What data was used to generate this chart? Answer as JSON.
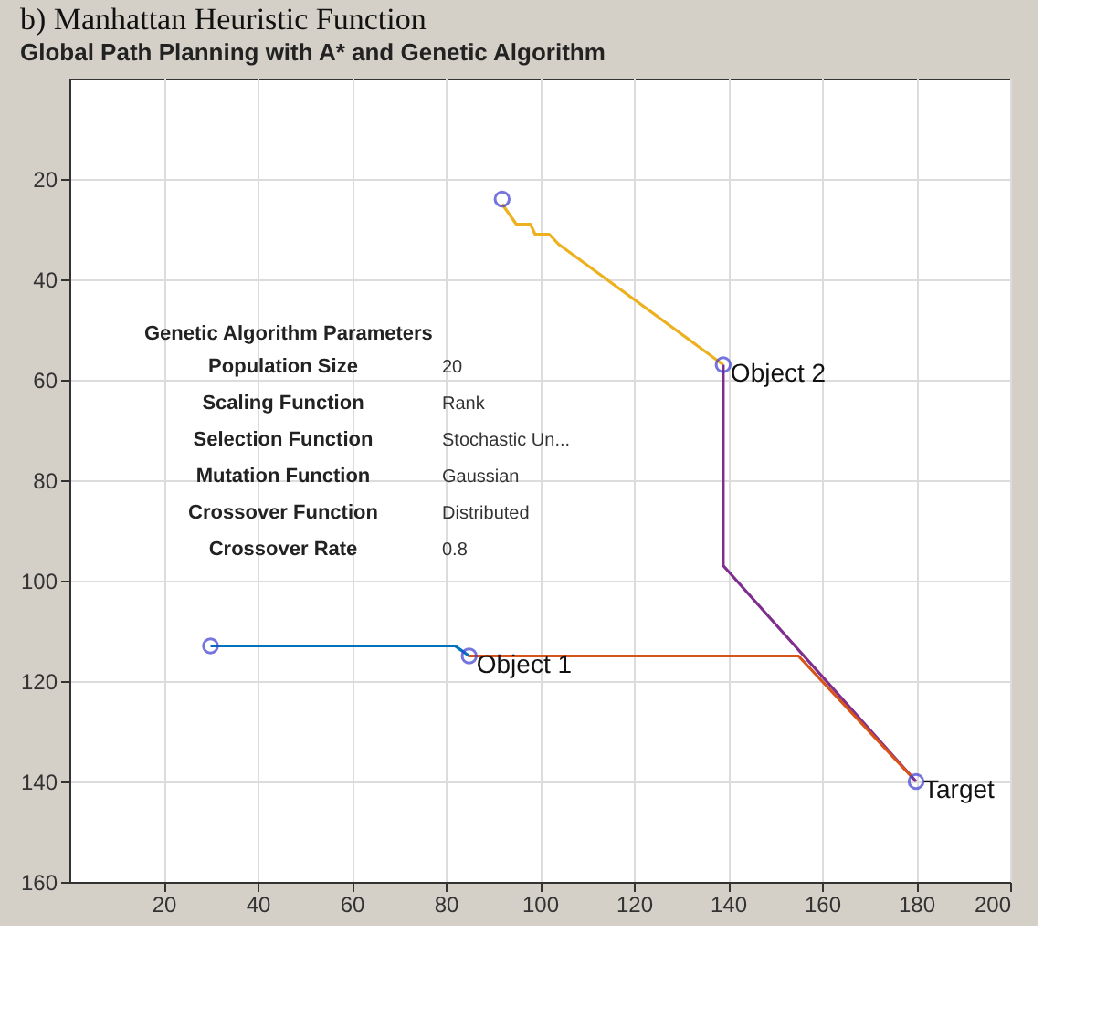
{
  "chart_data": {
    "type": "line",
    "title": "b) Manhattan Heuristic Function",
    "subtitle": "Global Path Planning with A* and Genetic Algorithm",
    "xlim": [
      0,
      200
    ],
    "xticks": [
      20,
      40,
      60,
      80,
      100,
      120,
      140,
      160,
      180,
      200
    ],
    "ylim": [
      160,
      0
    ],
    "yticks": [
      20,
      40,
      60,
      80,
      100,
      120,
      140,
      160
    ],
    "grid": true,
    "series": [
      {
        "color": "#edb120",
        "x": [
          92,
          95,
          98,
          99,
          102,
          104,
          139
        ],
        "values": [
          25,
          29,
          29,
          31,
          31,
          33,
          57
        ]
      },
      {
        "color": "#7e2f8e",
        "x": [
          139,
          139,
          180
        ],
        "values": [
          57,
          97,
          140
        ]
      },
      {
        "color": "#0072bd",
        "x": [
          30,
          82,
          85
        ],
        "values": [
          113,
          113,
          115
        ]
      },
      {
        "color": "#d95319",
        "x": [
          85,
          155,
          179
        ],
        "values": [
          115,
          115,
          139
        ]
      },
      {
        "type": "scatter",
        "marker": "circle",
        "color": "#3c3cd0",
        "x": [
          30,
          92,
          85,
          139,
          180
        ],
        "values": [
          113,
          24,
          115,
          57,
          140
        ]
      }
    ],
    "annotations": [
      {
        "text": "Object 1",
        "x": 85,
        "y": 115
      },
      {
        "text": "Object 2",
        "x": 139,
        "y": 57
      },
      {
        "text": "Target",
        "x": 180,
        "y": 140
      },
      "Genetic Algorithm Parameters",
      "Population Size",
      "20",
      "Scaling Function",
      "Rank",
      "Selection Function",
      "Stochastic Un...",
      "Mutation Function",
      "Gaussian",
      "Crossover Function",
      "Distributed",
      "Crossover Rate",
      "0.8"
    ]
  }
}
